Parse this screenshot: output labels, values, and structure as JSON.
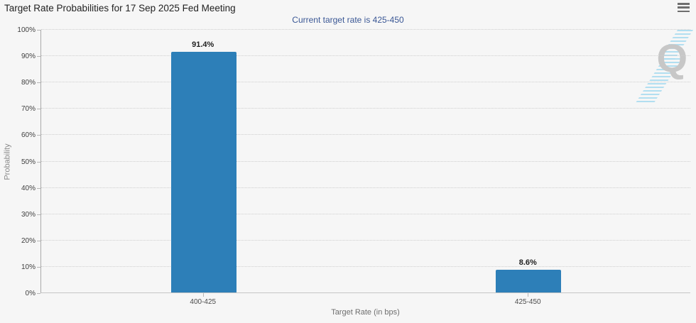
{
  "header": {
    "menu_icon": "hamburger-menu-icon"
  },
  "chart_data": {
    "type": "bar",
    "title": "Target Rate Probabilities for 17 Sep 2025 Fed Meeting",
    "subtitle": "Current target rate is 425-450",
    "categories": [
      "400-425",
      "425-450"
    ],
    "values": [
      91.4,
      8.6
    ],
    "value_labels": [
      "91.4%",
      "8.6%"
    ],
    "xlabel": "Target Rate (in bps)",
    "ylabel": "Probability",
    "ylim": [
      0,
      100
    ],
    "ytick_step": 10,
    "yticks": [
      {
        "value": 0,
        "label": "0%"
      },
      {
        "value": 10,
        "label": "10%"
      },
      {
        "value": 20,
        "label": "20%"
      },
      {
        "value": 30,
        "label": "30%"
      },
      {
        "value": 40,
        "label": "40%"
      },
      {
        "value": 50,
        "label": "50%"
      },
      {
        "value": 60,
        "label": "60%"
      },
      {
        "value": 70,
        "label": "70%"
      },
      {
        "value": 80,
        "label": "80%"
      },
      {
        "value": 90,
        "label": "90%"
      },
      {
        "value": 100,
        "label": "100%"
      }
    ],
    "grid": "horizontal-dotted",
    "legend": "none",
    "bar_color": "#2d7fb8",
    "watermark_letter": "Q"
  },
  "colors": {
    "background": "#f6f6f6",
    "subtitle_text": "#3a5795",
    "bar": "#2d7fb8",
    "gridline": "#cfcfcf",
    "watermark_gray": "#c7c7c7",
    "watermark_blue": "#aadcf0"
  }
}
